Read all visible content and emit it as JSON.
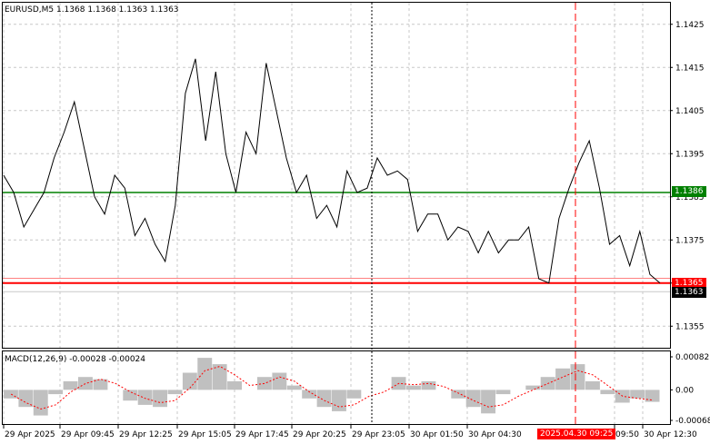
{
  "header": {
    "symbol_line": "EURUSD,M5  1.1368 1.1368 1.1363 1.1363",
    "macd_line": "MACD(12,26,9) -0.00028 -0.00024"
  },
  "price_panel": {
    "y_ticks": [
      "1.1425",
      "1.1415",
      "1.1405",
      "1.1395",
      "1.1385",
      "1.1375",
      "1.1365",
      "1.1355"
    ],
    "green_level": "1.1386",
    "red_level": "1.1365",
    "current_price": "1.1363"
  },
  "macd_panel": {
    "y_ticks": [
      "0.00082",
      "0.00",
      "-0.00068"
    ]
  },
  "time_axis": {
    "labels": [
      "29 Apr 2025",
      "29 Apr 09:45",
      "29 Apr 12:25",
      "29 Apr 15:05",
      "29 Apr 17:45",
      "29 Apr 20:25",
      "29 Apr 23:05",
      "30 Apr 01:50",
      "30 Apr 04:30",
      "2025.04.30 09:25",
      "09:50",
      "30 Apr 12:30"
    ]
  },
  "colors": {
    "green_line": "#008000",
    "red_line": "#ff0000",
    "grid": "#c8c8c8",
    "histogram": "#c0c0c0",
    "signal": "#ff0000",
    "cursor_label_bg": "#ff0000"
  },
  "chart_data": {
    "type": "line",
    "title": "EURUSD,M5",
    "series": [
      {
        "name": "EURUSD",
        "values": [
          1.139,
          1.1386,
          1.1378,
          1.1382,
          1.1386,
          1.1394,
          1.14,
          1.1407,
          1.1396,
          1.1385,
          1.1381,
          1.139,
          1.1387,
          1.1376,
          1.138,
          1.1374,
          1.137,
          1.1383,
          1.1409,
          1.1417,
          1.1398,
          1.1414,
          1.1395,
          1.1386,
          1.14,
          1.1395,
          1.1416,
          1.1405,
          1.1394,
          1.1386,
          1.139,
          1.138,
          1.1383,
          1.1378,
          1.1391,
          1.1386,
          1.1387,
          1.1394,
          1.139,
          1.1391,
          1.1389,
          1.1377,
          1.1381,
          1.1381,
          1.1375,
          1.1378,
          1.1377,
          1.1372,
          1.1377,
          1.1372,
          1.1375,
          1.1375,
          1.1378,
          1.1366,
          1.1365,
          1.138,
          1.1387,
          1.1393,
          1.1398,
          1.1387,
          1.1374,
          1.1376,
          1.1369,
          1.1377,
          1.1367,
          1.1365
        ]
      },
      {
        "name": "MACD",
        "values": [
          -0.0002,
          -0.0004,
          -0.0006,
          -0.0001,
          0.0002,
          0.0003,
          0.00025,
          0.0,
          -0.00025,
          -0.00035,
          -0.0004,
          -0.0001,
          0.0004,
          0.00075,
          0.0006,
          0.0002,
          0.0,
          0.0003,
          0.0004,
          0.0001,
          -0.0002,
          -0.0004,
          -0.0005,
          -0.0002,
          0.0,
          0.0,
          0.0003,
          0.0001,
          0.0002,
          0.0,
          -0.0002,
          -0.0004,
          -0.00055,
          -0.0001,
          0.0,
          0.0001,
          0.0003,
          0.0005,
          0.0006,
          0.0002,
          -0.0001,
          -0.0003,
          -0.0002,
          -0.00028
        ]
      },
      {
        "name": "Signal",
        "values": [
          -0.0001,
          -0.0003,
          -0.00045,
          -0.00035,
          -5e-05,
          0.00015,
          0.00025,
          0.00015,
          -5e-05,
          -0.0002,
          -0.0003,
          -0.00025,
          5e-05,
          0.00045,
          0.00055,
          0.00035,
          0.0001,
          0.00015,
          0.0003,
          0.0002,
          -5e-05,
          -0.00025,
          -0.0004,
          -0.00035,
          -0.00015,
          -5e-05,
          0.00015,
          0.00012,
          0.00015,
          8e-05,
          -8e-05,
          -0.00025,
          -0.0004,
          -0.00035,
          -0.00015,
          0.0,
          0.00015,
          0.0003,
          0.00045,
          0.00035,
          0.0001,
          -0.00015,
          -0.0002,
          -0.00024
        ]
      }
    ],
    "ylim": [
      1.135,
      1.143
    ],
    "macd_ylim": [
      -0.0008,
      0.0009
    ],
    "grid": true,
    "horizontal_levels": [
      1.1386,
      1.1365
    ]
  }
}
